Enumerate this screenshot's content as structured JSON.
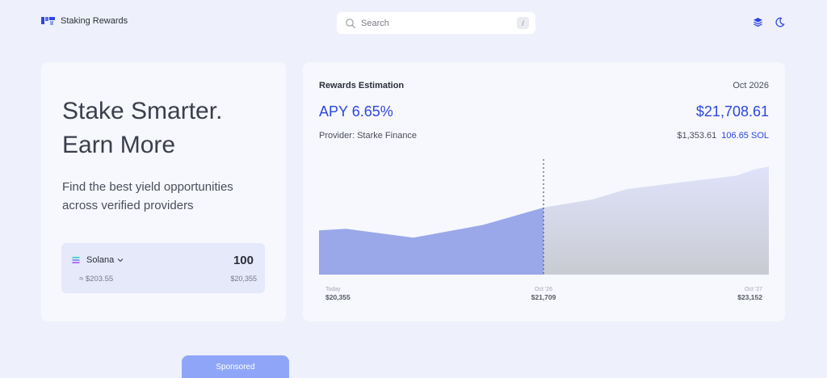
{
  "header": {
    "brand": "Staking Rewards",
    "search": {
      "placeholder": "Search",
      "shortcut": "/"
    },
    "icons": [
      "layers-icon",
      "moon-icon"
    ]
  },
  "hero": {
    "title_line1": "Stake Smarter.",
    "title_line2": "Earn More",
    "subtitle_line1": "Find the best yield opportunities",
    "subtitle_line2": "across verified providers"
  },
  "stake": {
    "token": "Solana",
    "amount": "100",
    "usd_approx": "≈ $203.55",
    "usd_total": "$20,355"
  },
  "rewards": {
    "title": "Rewards Estimation",
    "date": "Oct 2026",
    "apy": "APY 6.65%",
    "total_value": "$21,708.61",
    "provider": "Provider: Starke Finance",
    "earned_usd": "$1,353.61",
    "earned_sol": "106.65 SOL"
  },
  "chart_data": {
    "type": "area",
    "x": [
      "Today",
      "Oct '26",
      "Oct '27"
    ],
    "x_values": [
      "$20,355",
      "$21,709",
      "$23,152"
    ],
    "y": [
      20355,
      21709,
      23152
    ],
    "marker": "Oct '26",
    "colors": {
      "past": "#9aa8e9",
      "future_top": "#dfe3fa",
      "future_bottom": "#c9cbd3"
    }
  },
  "footer": {
    "sponsored": "Sponsored"
  },
  "colors": {
    "accent": "#2d46e0",
    "background": "#eef1fc",
    "card": "#f7f8fd"
  }
}
